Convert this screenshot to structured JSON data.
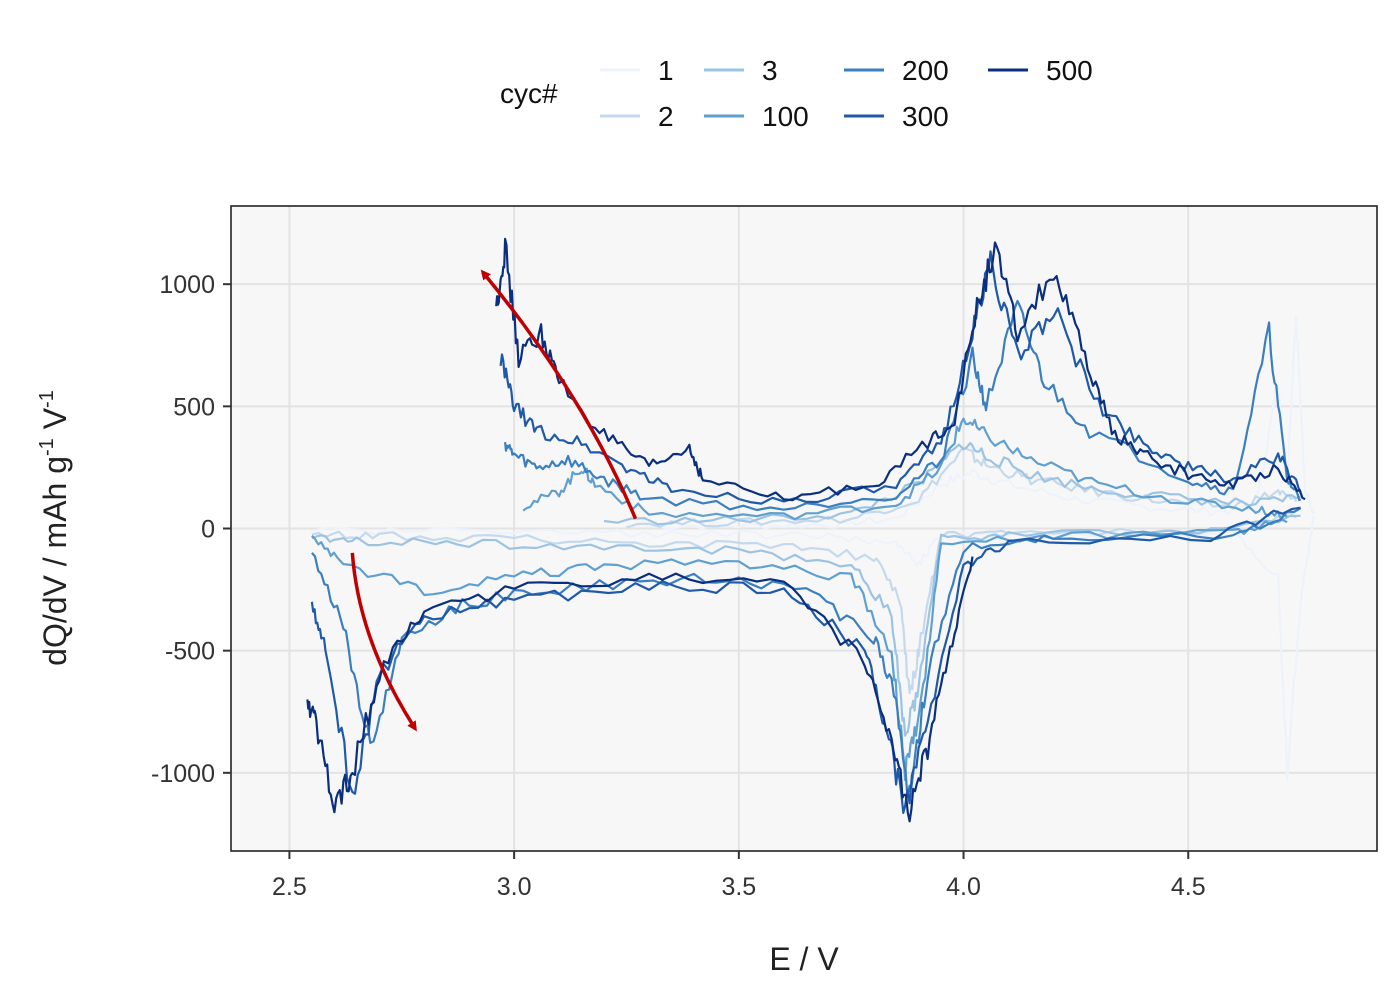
{
  "chart_data": {
    "type": "line",
    "xlabel": "E / V",
    "ylabel_main": "dQ/dV / mAh g",
    "ylabel_sup1": "-1",
    "ylabel_mid": " V",
    "ylabel_sup2": "-1",
    "xlim": [
      2.37,
      4.92
    ],
    "ylim": [
      -1320,
      1320
    ],
    "x_ticks": [
      2.5,
      3.0,
      3.5,
      4.0,
      4.5
    ],
    "x_tick_labels": [
      "2.5",
      "3.0",
      "3.5",
      "4.0",
      "4.5"
    ],
    "y_ticks": [
      -1000,
      -500,
      0,
      500,
      1000
    ],
    "y_tick_labels": [
      "-1000",
      "-500",
      "0",
      "500",
      "1000"
    ],
    "grid": true,
    "legend": {
      "title": "cyc#",
      "placement": "top",
      "entries": [
        {
          "label": "1",
          "color": "#eef3fb"
        },
        {
          "label": "2",
          "color": "#c4d9ee"
        },
        {
          "label": "3",
          "color": "#9dc3e3"
        },
        {
          "label": "100",
          "color": "#5fa0d0"
        },
        {
          "label": "200",
          "color": "#3b7fbf"
        },
        {
          "label": "300",
          "color": "#1f5aa8"
        },
        {
          "label": "500",
          "color": "#0b2f7f"
        }
      ]
    },
    "series": [
      {
        "name": "1",
        "color": "#eef3fb",
        "charge": [
          [
            3.3,
            10
          ],
          [
            3.5,
            12
          ],
          [
            3.7,
            15
          ],
          [
            3.85,
            40
          ],
          [
            3.95,
            180
          ],
          [
            4.02,
            230
          ],
          [
            4.1,
            180
          ],
          [
            4.25,
            120
          ],
          [
            4.4,
            90
          ],
          [
            4.55,
            70
          ],
          [
            4.65,
            80
          ],
          [
            4.7,
            600
          ],
          [
            4.72,
            200
          ],
          [
            4.74,
            900
          ],
          [
            4.76,
            150
          ],
          [
            4.78,
            60
          ]
        ],
        "discharge": [
          [
            4.78,
            50
          ],
          [
            4.75,
            -300
          ],
          [
            4.72,
            -1000
          ],
          [
            4.7,
            -200
          ],
          [
            4.6,
            -20
          ],
          [
            4.2,
            -15
          ],
          [
            3.95,
            -20
          ],
          [
            3.9,
            -150
          ],
          [
            3.85,
            -60
          ],
          [
            3.7,
            -30
          ],
          [
            3.5,
            -25
          ],
          [
            3.2,
            -20
          ],
          [
            2.9,
            -15
          ],
          [
            2.55,
            -10
          ]
        ]
      },
      {
        "name": "2",
        "color": "#c4d9ee",
        "charge": [
          [
            3.25,
            20
          ],
          [
            3.5,
            25
          ],
          [
            3.75,
            40
          ],
          [
            3.9,
            120
          ],
          [
            4.0,
            320
          ],
          [
            4.05,
            260
          ],
          [
            4.15,
            200
          ],
          [
            4.3,
            150
          ],
          [
            4.45,
            110
          ],
          [
            4.6,
            90
          ],
          [
            4.7,
            150
          ],
          [
            4.74,
            110
          ]
        ],
        "discharge": [
          [
            4.74,
            60
          ],
          [
            4.6,
            -10
          ],
          [
            4.1,
            -20
          ],
          [
            3.95,
            -30
          ],
          [
            3.9,
            -500
          ],
          [
            3.88,
            -700
          ],
          [
            3.86,
            -300
          ],
          [
            3.8,
            -120
          ],
          [
            3.6,
            -70
          ],
          [
            3.3,
            -60
          ],
          [
            3.0,
            -40
          ],
          [
            2.7,
            -30
          ],
          [
            2.55,
            -25
          ]
        ]
      },
      {
        "name": "3",
        "color": "#9dc3e3",
        "charge": [
          [
            3.2,
            30
          ],
          [
            3.5,
            35
          ],
          [
            3.75,
            60
          ],
          [
            3.9,
            180
          ],
          [
            4.0,
            350
          ],
          [
            4.05,
            300
          ],
          [
            4.15,
            220
          ],
          [
            4.3,
            160
          ],
          [
            4.5,
            120
          ],
          [
            4.65,
            100
          ],
          [
            4.75,
            130
          ]
        ],
        "discharge": [
          [
            4.75,
            50
          ],
          [
            4.5,
            -15
          ],
          [
            4.1,
            -25
          ],
          [
            3.95,
            -40
          ],
          [
            3.9,
            -650
          ],
          [
            3.87,
            -850
          ],
          [
            3.84,
            -350
          ],
          [
            3.75,
            -150
          ],
          [
            3.5,
            -90
          ],
          [
            3.2,
            -80
          ],
          [
            2.9,
            -60
          ],
          [
            2.65,
            -50
          ],
          [
            2.55,
            -40
          ]
        ]
      },
      {
        "name": "100",
        "color": "#5fa0d0",
        "charge": [
          [
            3.02,
            90
          ],
          [
            3.1,
            150
          ],
          [
            3.15,
            250
          ],
          [
            3.18,
            180
          ],
          [
            3.3,
            60
          ],
          [
            3.6,
            50
          ],
          [
            3.85,
            100
          ],
          [
            3.95,
            250
          ],
          [
            4.0,
            450
          ],
          [
            4.05,
            380
          ],
          [
            4.15,
            280
          ],
          [
            4.3,
            180
          ],
          [
            4.5,
            110
          ],
          [
            4.65,
            80
          ],
          [
            4.72,
            50
          ]
        ],
        "discharge": [
          [
            4.72,
            40
          ],
          [
            4.6,
            -20
          ],
          [
            4.2,
            -30
          ],
          [
            3.95,
            -60
          ],
          [
            3.9,
            -800
          ],
          [
            3.87,
            -1000
          ],
          [
            3.84,
            -500
          ],
          [
            3.75,
            -200
          ],
          [
            3.5,
            -140
          ],
          [
            3.2,
            -150
          ],
          [
            3.0,
            -200
          ],
          [
            2.8,
            -250
          ],
          [
            2.62,
            -150
          ],
          [
            2.55,
            -30
          ]
        ]
      },
      {
        "name": "200",
        "color": "#3b7fbf",
        "charge": [
          [
            2.98,
            350
          ],
          [
            3.0,
            300
          ],
          [
            3.05,
            250
          ],
          [
            3.12,
            280
          ],
          [
            3.2,
            200
          ],
          [
            3.3,
            120
          ],
          [
            3.6,
            80
          ],
          [
            3.85,
            140
          ],
          [
            3.95,
            280
          ],
          [
            4.02,
            700
          ],
          [
            4.05,
            500
          ],
          [
            4.12,
            900
          ],
          [
            4.18,
            600
          ],
          [
            4.28,
            400
          ],
          [
            4.5,
            200
          ],
          [
            4.6,
            150
          ],
          [
            4.68,
            800
          ],
          [
            4.72,
            200
          ],
          [
            4.75,
            120
          ]
        ],
        "discharge": [
          [
            4.75,
            80
          ],
          [
            4.6,
            -30
          ],
          [
            4.2,
            -40
          ],
          [
            4.0,
            -80
          ],
          [
            3.92,
            -600
          ],
          [
            3.88,
            -1100
          ],
          [
            3.85,
            -700
          ],
          [
            3.8,
            -450
          ],
          [
            3.65,
            -250
          ],
          [
            3.4,
            -200
          ],
          [
            3.1,
            -250
          ],
          [
            2.9,
            -300
          ],
          [
            2.75,
            -450
          ],
          [
            2.68,
            -900
          ],
          [
            2.62,
            -400
          ],
          [
            2.55,
            -100
          ]
        ]
      },
      {
        "name": "300",
        "color": "#1f5aa8",
        "charge": [
          [
            2.97,
            700
          ],
          [
            3.0,
            500
          ],
          [
            3.05,
            400
          ],
          [
            3.15,
            350
          ],
          [
            3.25,
            250
          ],
          [
            3.35,
            160
          ],
          [
            3.6,
            110
          ],
          [
            3.85,
            170
          ],
          [
            3.95,
            350
          ],
          [
            4.02,
            800
          ],
          [
            4.06,
            1100
          ],
          [
            4.12,
            700
          ],
          [
            4.2,
            900
          ],
          [
            4.3,
            500
          ],
          [
            4.4,
            350
          ],
          [
            4.5,
            250
          ],
          [
            4.6,
            200
          ],
          [
            4.7,
            300
          ],
          [
            4.75,
            150
          ]
        ],
        "discharge": [
          [
            4.75,
            100
          ],
          [
            4.55,
            -40
          ],
          [
            4.1,
            -60
          ],
          [
            4.0,
            -150
          ],
          [
            3.92,
            -800
          ],
          [
            3.87,
            -1150
          ],
          [
            3.83,
            -850
          ],
          [
            3.78,
            -500
          ],
          [
            3.6,
            -250
          ],
          [
            3.3,
            -230
          ],
          [
            3.0,
            -300
          ],
          [
            2.8,
            -350
          ],
          [
            2.7,
            -600
          ],
          [
            2.64,
            -1100
          ],
          [
            2.58,
            -500
          ],
          [
            2.55,
            -300
          ]
        ]
      },
      {
        "name": "500",
        "color": "#0b2f7f",
        "charge": [
          [
            2.96,
            900
          ],
          [
            2.98,
            1150
          ],
          [
            3.01,
            700
          ],
          [
            3.06,
            800
          ],
          [
            3.1,
            600
          ],
          [
            3.2,
            380
          ],
          [
            3.3,
            250
          ],
          [
            3.39,
            330
          ],
          [
            3.42,
            200
          ],
          [
            3.6,
            120
          ],
          [
            3.8,
            180
          ],
          [
            3.92,
            350
          ],
          [
            3.98,
            450
          ],
          [
            4.03,
            900
          ],
          [
            4.07,
            1150
          ],
          [
            4.12,
            800
          ],
          [
            4.2,
            1050
          ],
          [
            4.27,
            700
          ],
          [
            4.33,
            400
          ],
          [
            4.4,
            300
          ],
          [
            4.5,
            220
          ],
          [
            4.6,
            180
          ],
          [
            4.7,
            250
          ],
          [
            4.76,
            120
          ]
        ],
        "discharge": [
          [
            4.02,
            -120
          ],
          [
            3.97,
            -500
          ],
          [
            3.92,
            -900
          ],
          [
            3.88,
            -1150
          ],
          [
            3.84,
            -900
          ],
          [
            3.78,
            -550
          ],
          [
            3.6,
            -230
          ],
          [
            3.3,
            -200
          ],
          [
            3.0,
            -250
          ],
          [
            2.8,
            -330
          ],
          [
            2.7,
            -600
          ],
          [
            2.64,
            -1000
          ],
          [
            2.6,
            -1150
          ],
          [
            2.56,
            -800
          ],
          [
            2.54,
            -700
          ]
        ]
      }
    ],
    "annotations": [
      {
        "type": "arrow",
        "color": "#c00000",
        "from": [
          3.27,
          40
        ],
        "to": [
          2.93,
          1050
        ]
      },
      {
        "type": "arrow",
        "color": "#c00000",
        "from": [
          2.64,
          -100
        ],
        "to": [
          2.78,
          -820
        ]
      }
    ]
  }
}
